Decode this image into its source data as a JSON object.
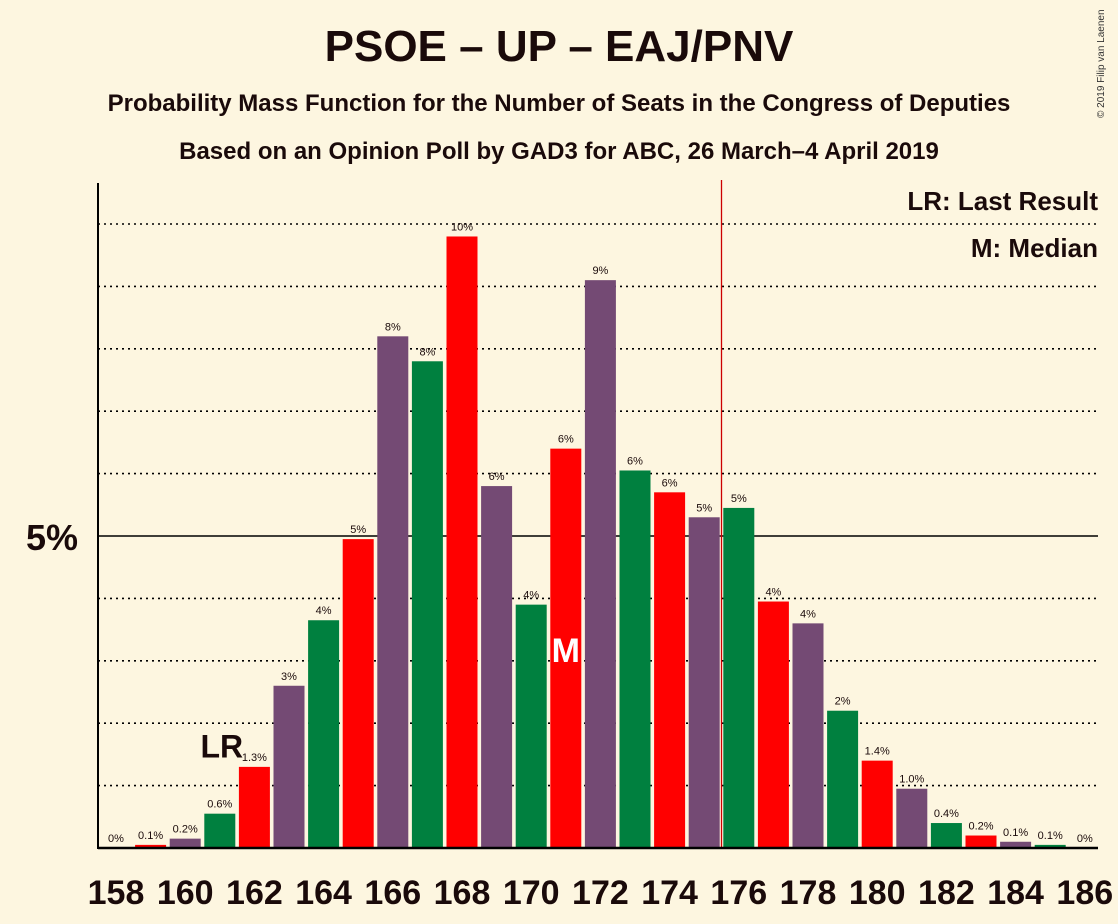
{
  "title": "PSOE – UP – EAJ/PNV",
  "subtitle": "Probability Mass Function for the Number of Seats in the Congress of Deputies",
  "subtitle2": "Based on an Opinion Poll by GAD3 for ABC, 26 March–4 April 2019",
  "copyright": "© 2019 Filip van Laenen",
  "legend": {
    "lr": "LR: Last Result",
    "m": "M: Median"
  },
  "colors": {
    "background": "#fdf6e0",
    "purple": "#744a74",
    "green": "#00803f",
    "red": "#ff0000",
    "majority_line": "#cc0000"
  },
  "chart_data": {
    "type": "bar",
    "x": [
      158,
      159,
      160,
      161,
      162,
      163,
      164,
      165,
      166,
      167,
      168,
      169,
      170,
      171,
      172,
      173,
      174,
      175,
      176,
      177,
      178,
      179,
      180,
      181,
      182,
      183,
      184,
      185,
      186
    ],
    "values": [
      0,
      0.05,
      0.15,
      0.55,
      1.3,
      2.6,
      3.65,
      4.95,
      8.2,
      7.8,
      9.8,
      5.8,
      3.9,
      6.4,
      9.1,
      6.05,
      5.7,
      5.3,
      5.45,
      3.95,
      3.6,
      2.2,
      1.4,
      0.95,
      0.4,
      0.2,
      0.1,
      0.05,
      0
    ],
    "labels": [
      "0%",
      "0.1%",
      "0.2%",
      "0.6%",
      "1.3%",
      "3%",
      "4%",
      "5%",
      "8%",
      "8%",
      "10%",
      "6%",
      "4%",
      "6%",
      "9%",
      "6%",
      "6%",
      "5%",
      "5%",
      "4%",
      "4%",
      "2%",
      "1.4%",
      "1.0%",
      "0.4%",
      "0.2%",
      "0.1%",
      "0.1%",
      "0%"
    ],
    "bar_colors": [
      "purple",
      "red",
      "purple",
      "green",
      "red",
      "purple",
      "green",
      "red",
      "purple",
      "green",
      "red",
      "purple",
      "green",
      "red",
      "purple",
      "green",
      "red",
      "purple",
      "green",
      "red",
      "purple",
      "green",
      "red",
      "purple",
      "green",
      "red",
      "purple",
      "green",
      "red"
    ],
    "x_tick_labels": [
      "158",
      "160",
      "162",
      "164",
      "166",
      "168",
      "170",
      "172",
      "174",
      "176",
      "178",
      "180",
      "182",
      "184",
      "186"
    ],
    "y_tick_label": "5%",
    "y_tick_value": 5,
    "ylim": [
      0,
      10.6
    ],
    "last_result_seat": 161,
    "last_result_label": "LR",
    "median_seat": 171,
    "median_label": "M",
    "majority_seat": 176
  }
}
